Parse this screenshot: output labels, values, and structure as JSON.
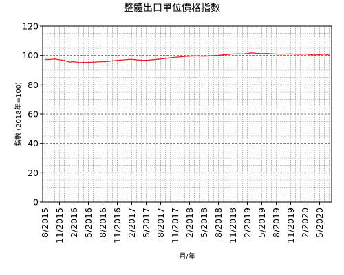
{
  "chart_data": {
    "type": "line",
    "title": "整體出口單位價格指數",
    "xlabel": "月/年",
    "ylabel": "指數 (2018年=100)",
    "ylim": [
      0,
      120
    ],
    "y_ticks": [
      "0",
      "20",
      "40",
      "60",
      "80",
      "100",
      "120"
    ],
    "x_tick_labels": [
      "8/2015",
      "11/2015",
      "2/2016",
      "5/2016",
      "8/2016",
      "11/2016",
      "2/2017",
      "5/2017",
      "8/2017",
      "11/2017",
      "2/2018",
      "5/2018",
      "8/2018",
      "11/2018",
      "2/2019",
      "5/2019",
      "8/2019",
      "11/2019",
      "2/2020",
      "5/2020"
    ],
    "grid": true,
    "line_color": "#e8202a",
    "x": [
      "8/2015",
      "9/2015",
      "10/2015",
      "11/2015",
      "12/2015",
      "1/2016",
      "2/2016",
      "3/2016",
      "4/2016",
      "5/2016",
      "6/2016",
      "7/2016",
      "8/2016",
      "9/2016",
      "10/2016",
      "11/2016",
      "12/2016",
      "1/2017",
      "2/2017",
      "3/2017",
      "4/2017",
      "5/2017",
      "6/2017",
      "7/2017",
      "8/2017",
      "9/2017",
      "10/2017",
      "11/2017",
      "12/2017",
      "1/2018",
      "2/2018",
      "3/2018",
      "4/2018",
      "5/2018",
      "6/2018",
      "7/2018",
      "8/2018",
      "9/2018",
      "10/2018",
      "11/2018",
      "12/2018",
      "1/2019",
      "2/2019",
      "3/2019",
      "4/2019",
      "5/2019",
      "6/2019",
      "7/2019",
      "8/2019",
      "9/2019",
      "10/2019",
      "11/2019",
      "12/2019",
      "1/2020",
      "2/2020",
      "3/2020",
      "4/2020",
      "5/2020",
      "6/2020",
      "7/2020"
    ],
    "series": [
      {
        "values": [
          97.3,
          97.3,
          97.6,
          97.1,
          96.6,
          95.6,
          95.8,
          95.2,
          95.3,
          95.3,
          95.5,
          95.7,
          95.8,
          96.0,
          96.4,
          96.7,
          96.9,
          97.2,
          97.4,
          97.0,
          96.8,
          96.7,
          97.0,
          97.3,
          97.6,
          98.0,
          98.4,
          98.8,
          99.0,
          99.3,
          99.5,
          99.7,
          99.6,
          99.5,
          99.7,
          99.9,
          100.1,
          100.4,
          100.7,
          101.0,
          101.2,
          101.0,
          101.4,
          101.8,
          101.5,
          101.3,
          101.4,
          101.2,
          101.0,
          100.9,
          101.0,
          101.1,
          100.9,
          100.8,
          101.0,
          100.6,
          100.3,
          100.6,
          100.9,
          100.3
        ]
      }
    ]
  }
}
